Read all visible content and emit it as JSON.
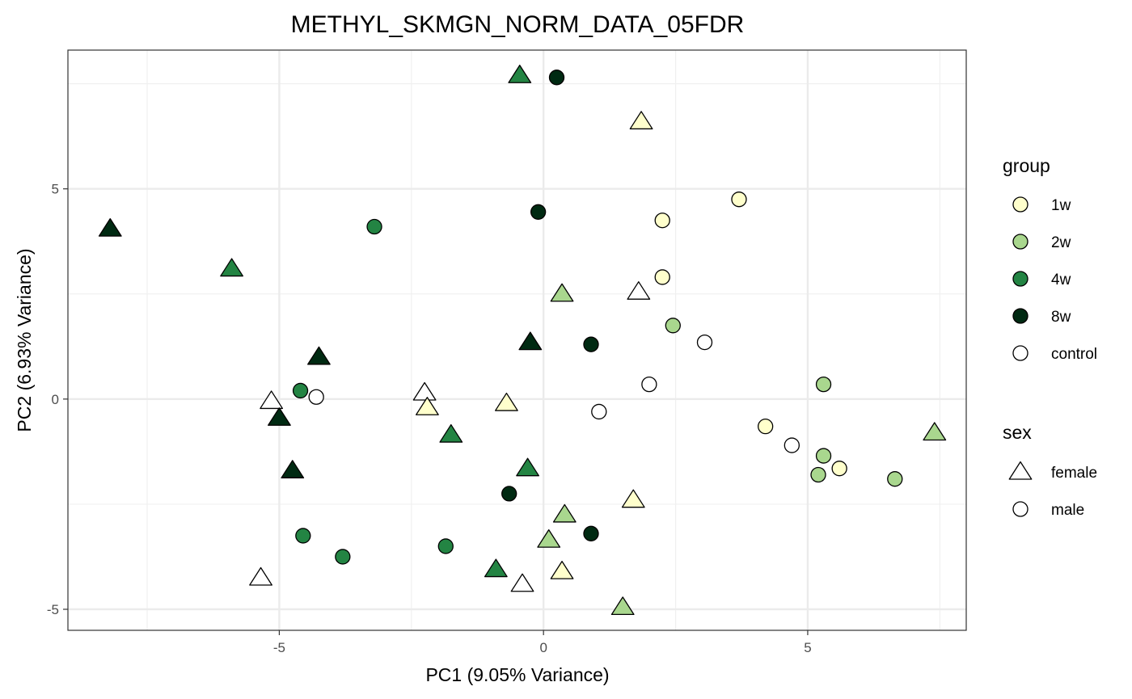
{
  "chart_data": {
    "type": "scatter",
    "title": "METHYL_SKMGN_NORM_DATA_05FDR",
    "xlabel": "PC1 (9.05% Variance)",
    "ylabel": "PC2 (6.93% Variance)",
    "xlim": [
      -9.0,
      8.0
    ],
    "ylim": [
      -5.5,
      8.3
    ],
    "x_ticks": [
      -5,
      0,
      5
    ],
    "x_tick_labels": [
      "-5",
      "0",
      "5"
    ],
    "y_ticks": [
      -5,
      0,
      5
    ],
    "y_tick_labels": [
      "-5",
      "0",
      "5"
    ],
    "grid": true,
    "legend_position": "right",
    "legend": {
      "group": {
        "title": "group",
        "entries": [
          {
            "label": "1w",
            "color": "#ffffcc"
          },
          {
            "label": "2w",
            "color": "#a9d78e"
          },
          {
            "label": "4w",
            "color": "#238443"
          },
          {
            "label": "8w",
            "color": "#002a12"
          },
          {
            "label": "control",
            "color": "#ffffff"
          }
        ]
      },
      "sex": {
        "title": "sex",
        "entries": [
          {
            "label": "female",
            "shape": "triangle"
          },
          {
            "label": "male",
            "shape": "circle"
          }
        ]
      }
    },
    "points": [
      {
        "x": -8.2,
        "y": 4.05,
        "group": "8w",
        "sex": "female"
      },
      {
        "x": -5.9,
        "y": 3.1,
        "group": "4w",
        "sex": "female"
      },
      {
        "x": -3.2,
        "y": 4.1,
        "group": "4w",
        "sex": "male"
      },
      {
        "x": -0.45,
        "y": 7.7,
        "group": "4w",
        "sex": "female"
      },
      {
        "x": 0.25,
        "y": 7.65,
        "group": "8w",
        "sex": "male"
      },
      {
        "x": 1.85,
        "y": 6.6,
        "group": "1w",
        "sex": "female"
      },
      {
        "x": -0.1,
        "y": 4.45,
        "group": "8w",
        "sex": "male"
      },
      {
        "x": 3.7,
        "y": 4.75,
        "group": "1w",
        "sex": "male"
      },
      {
        "x": 2.25,
        "y": 4.25,
        "group": "1w",
        "sex": "male"
      },
      {
        "x": 2.25,
        "y": 2.9,
        "group": "1w",
        "sex": "male"
      },
      {
        "x": 0.35,
        "y": 2.5,
        "group": "2w",
        "sex": "female"
      },
      {
        "x": 1.8,
        "y": 2.55,
        "group": "control",
        "sex": "female"
      },
      {
        "x": 2.45,
        "y": 1.75,
        "group": "2w",
        "sex": "male"
      },
      {
        "x": 3.05,
        "y": 1.35,
        "group": "control",
        "sex": "male"
      },
      {
        "x": -4.25,
        "y": 1.0,
        "group": "8w",
        "sex": "female"
      },
      {
        "x": -0.25,
        "y": 1.35,
        "group": "8w",
        "sex": "female"
      },
      {
        "x": 0.9,
        "y": 1.3,
        "group": "8w",
        "sex": "male"
      },
      {
        "x": 2.0,
        "y": 0.35,
        "group": "control",
        "sex": "male"
      },
      {
        "x": 5.3,
        "y": 0.35,
        "group": "2w",
        "sex": "male"
      },
      {
        "x": -4.6,
        "y": 0.2,
        "group": "4w",
        "sex": "male"
      },
      {
        "x": -4.3,
        "y": 0.05,
        "group": "control",
        "sex": "male"
      },
      {
        "x": -5.15,
        "y": -0.05,
        "group": "control",
        "sex": "female"
      },
      {
        "x": -5.0,
        "y": -0.45,
        "group": "8w",
        "sex": "female"
      },
      {
        "x": -2.25,
        "y": 0.15,
        "group": "control",
        "sex": "female"
      },
      {
        "x": -2.2,
        "y": -0.2,
        "group": "1w",
        "sex": "female"
      },
      {
        "x": -0.7,
        "y": -0.1,
        "group": "1w",
        "sex": "female"
      },
      {
        "x": 1.05,
        "y": -0.3,
        "group": "control",
        "sex": "male"
      },
      {
        "x": -1.75,
        "y": -0.85,
        "group": "4w",
        "sex": "female"
      },
      {
        "x": 4.2,
        "y": -0.65,
        "group": "1w",
        "sex": "male"
      },
      {
        "x": 4.7,
        "y": -1.1,
        "group": "control",
        "sex": "male"
      },
      {
        "x": 7.4,
        "y": -0.8,
        "group": "2w",
        "sex": "female"
      },
      {
        "x": 5.3,
        "y": -1.35,
        "group": "2w",
        "sex": "male"
      },
      {
        "x": 5.6,
        "y": -1.65,
        "group": "1w",
        "sex": "male"
      },
      {
        "x": 5.2,
        "y": -1.8,
        "group": "2w",
        "sex": "male"
      },
      {
        "x": 6.65,
        "y": -1.9,
        "group": "2w",
        "sex": "male"
      },
      {
        "x": -4.75,
        "y": -1.7,
        "group": "8w",
        "sex": "female"
      },
      {
        "x": -0.3,
        "y": -1.65,
        "group": "4w",
        "sex": "female"
      },
      {
        "x": -0.65,
        "y": -2.25,
        "group": "8w",
        "sex": "male"
      },
      {
        "x": 1.7,
        "y": -2.4,
        "group": "1w",
        "sex": "female"
      },
      {
        "x": 0.4,
        "y": -2.75,
        "group": "2w",
        "sex": "female"
      },
      {
        "x": 0.9,
        "y": -3.2,
        "group": "8w",
        "sex": "male"
      },
      {
        "x": -4.55,
        "y": -3.25,
        "group": "4w",
        "sex": "male"
      },
      {
        "x": -1.85,
        "y": -3.5,
        "group": "4w",
        "sex": "male"
      },
      {
        "x": 0.1,
        "y": -3.35,
        "group": "2w",
        "sex": "female"
      },
      {
        "x": -3.8,
        "y": -3.75,
        "group": "4w",
        "sex": "male"
      },
      {
        "x": -0.9,
        "y": -4.05,
        "group": "4w",
        "sex": "female"
      },
      {
        "x": 0.35,
        "y": -4.1,
        "group": "1w",
        "sex": "female"
      },
      {
        "x": -5.35,
        "y": -4.25,
        "group": "control",
        "sex": "female"
      },
      {
        "x": -0.4,
        "y": -4.4,
        "group": "control",
        "sex": "female"
      },
      {
        "x": 1.5,
        "y": -4.95,
        "group": "2w",
        "sex": "female"
      }
    ]
  }
}
